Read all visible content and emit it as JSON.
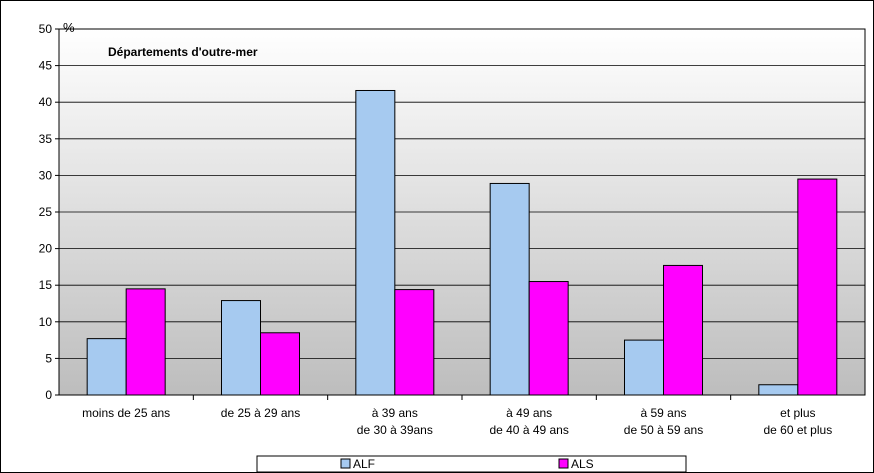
{
  "chart_data": {
    "type": "bar",
    "title": "Départements d'outre-mer",
    "ylabel": "%",
    "ylim": [
      0,
      50
    ],
    "yticks": [
      0,
      5,
      10,
      15,
      20,
      25,
      30,
      35,
      40,
      45,
      50
    ],
    "grid": true,
    "legend_position": "bottom",
    "categories": [
      [
        "moins de 25 ans"
      ],
      [
        "de 25 à 29 ans"
      ],
      [
        "à 39 ans",
        "de 30 à 39ans"
      ],
      [
        "à 49 ans",
        "de 40 à 49 ans"
      ],
      [
        "à 59 ans",
        "de 50 à 59 ans"
      ],
      [
        "et plus",
        "de 60 et plus"
      ]
    ],
    "series": [
      {
        "name": "ALF",
        "color": "#a6caf0",
        "values": [
          7.7,
          12.9,
          41.6,
          28.9,
          7.5,
          1.4
        ]
      },
      {
        "name": "ALS",
        "color": "#ff00ff",
        "values": [
          14.5,
          8.5,
          14.4,
          15.5,
          17.7,
          29.5
        ]
      }
    ]
  }
}
